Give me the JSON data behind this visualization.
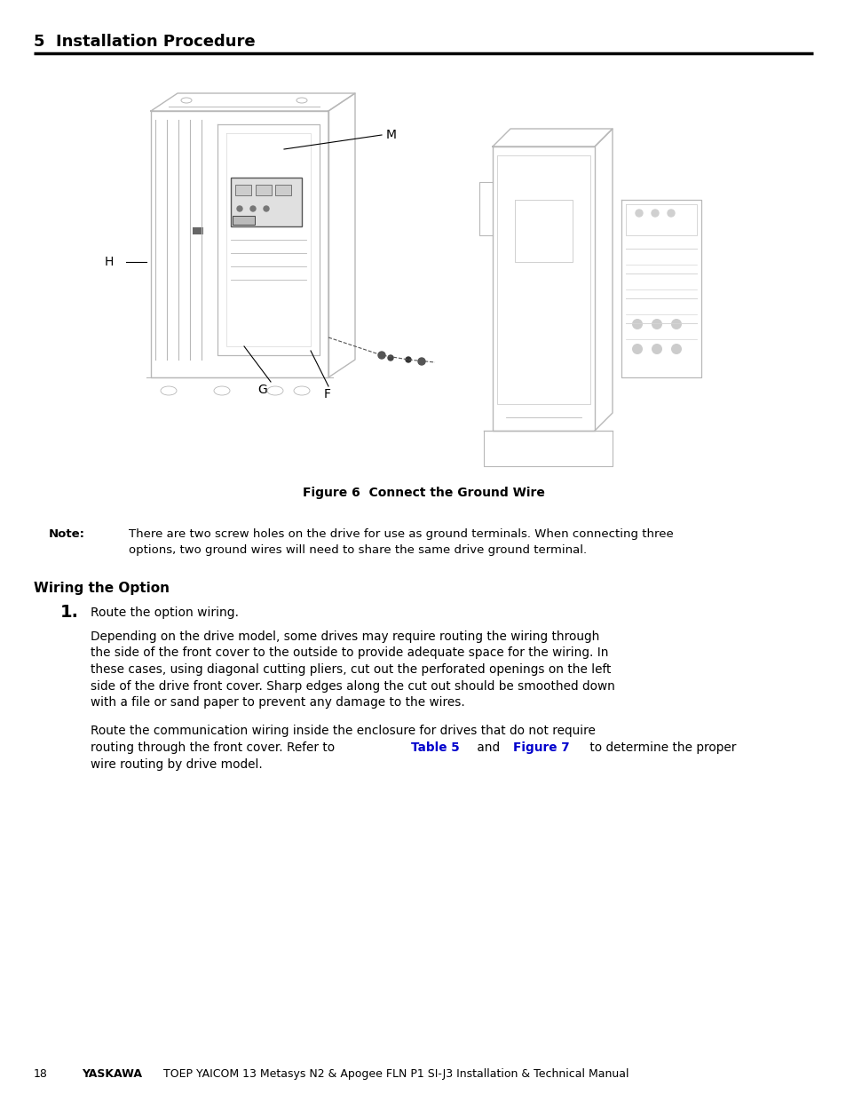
{
  "title": "5  Installation Procedure",
  "title_fontsize": 13,
  "title_fontweight": "bold",
  "fig_caption": "Figure 6  Connect the Ground Wire",
  "fig_caption_fontsize": 10,
  "note_label": "Note:",
  "note_text_line1": "There are two screw holes on the drive for use as ground terminals. When connecting three",
  "note_text_line2": "options, two ground wires will need to share the same drive ground terminal.",
  "section_heading": "Wiring the Option",
  "step1_number": "1.",
  "step1_text": "Route the option wiring.",
  "para1_line1": "Depending on the drive model, some drives may require routing the wiring through",
  "para1_line2": "the side of the front cover to the outside to provide adequate space for the wiring. In",
  "para1_line3": "these cases, using diagonal cutting pliers, cut out the perforated openings on the left",
  "para1_line4": "side of the drive front cover. Sharp edges along the cut out should be smoothed down",
  "para1_line5": "with a file or sand paper to prevent any damage to the wires.",
  "para2_line1": "Route the communication wiring inside the enclosure for drives that do not require",
  "para2_line2_before": "routing through the front cover. Refer to ",
  "para2_line2_link1": "Table 5",
  "para2_line2_mid": "and ",
  "para2_line2_link2": "Figure 7",
  "para2_line2_after": "to determine the proper",
  "para2_line3": "wire routing by drive model.",
  "footer_page": "18",
  "footer_bold": "YASKAWA",
  "footer_normal": " TOEP YAICOM 13 Metasys N2 & Apogee FLN P1 SI-J3 Installation & Technical Manual",
  "bg_color": "#ffffff",
  "text_color": "#000000",
  "link_color": "#0000cc",
  "rule_color": "#000000",
  "draw_color": "#c8c8c8",
  "draw_dark": "#808080"
}
